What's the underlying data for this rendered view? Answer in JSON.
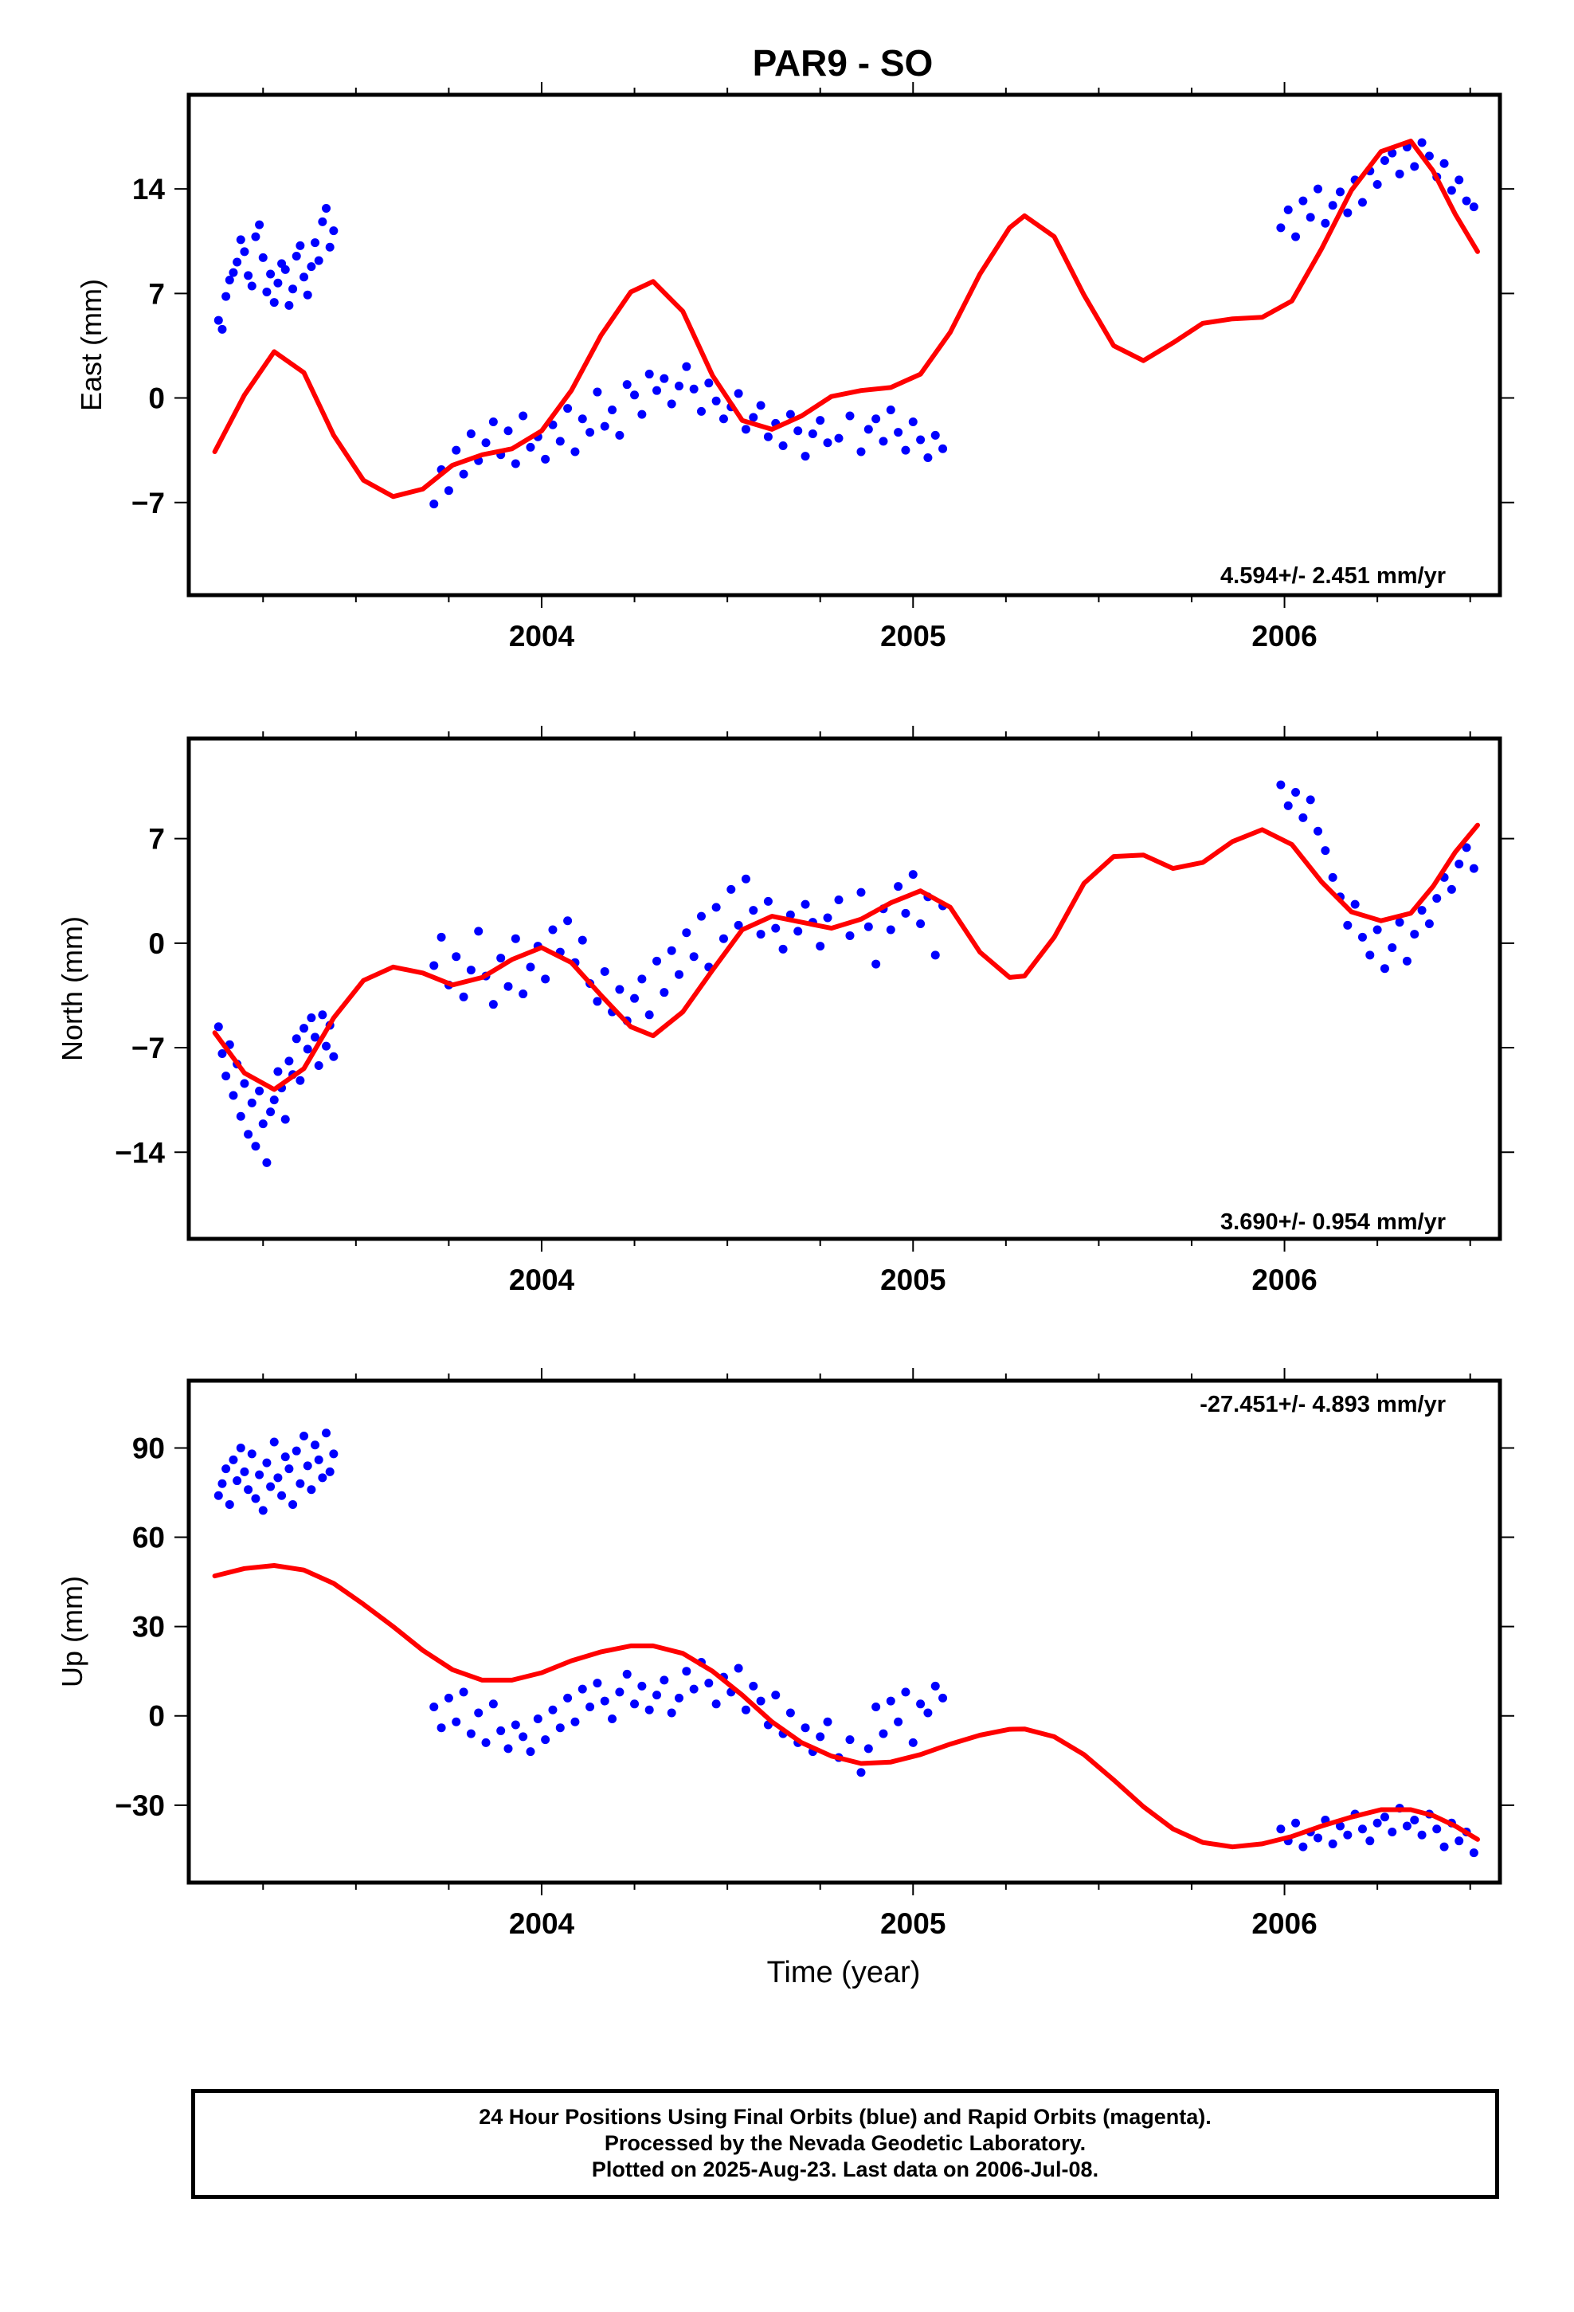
{
  "title": "PAR9 - SO",
  "xlabel": "Time (year)",
  "footer": {
    "line1": "24 Hour Positions Using Final Orbits (blue) and Rapid Orbits (magenta).",
    "line2": "Processed by the Nevada Geodetic Laboratory.",
    "line3": "Plotted on 2025-Aug-23. Last data on 2006-Jul-08."
  },
  "colors": {
    "points": "#0000ff",
    "model": "#ff0000",
    "axes": "#000000"
  },
  "chart_data": [
    {
      "type": "scatter",
      "name": "east",
      "ylabel": "East (mm)",
      "rate_label": "4.594+/- 2.451 mm/yr",
      "rate_position": "bottom-right",
      "xlim": [
        2003.05,
        2006.58
      ],
      "ylim": [
        -13.2,
        20.3
      ],
      "x_ticks": [
        2004,
        2005,
        2006
      ],
      "y_ticks": [
        -7,
        0,
        7,
        14
      ],
      "grid": false,
      "model_line": {
        "x": [
          2003.12,
          2003.2,
          2003.28,
          2003.36,
          2003.44,
          2003.52,
          2003.6,
          2003.68,
          2003.76,
          2003.84,
          2003.92,
          2004.0,
          2004.08,
          2004.16,
          2004.24,
          2004.3,
          2004.38,
          2004.46,
          2004.54,
          2004.62,
          2004.7,
          2004.78,
          2004.86,
          2004.94,
          2005.02,
          2005.1,
          2005.18,
          2005.26,
          2005.3,
          2005.38,
          2005.46,
          2005.54,
          2005.62,
          2005.7,
          2005.78,
          2005.86,
          2005.94,
          2006.02,
          2006.1,
          2006.18,
          2006.26,
          2006.34,
          2006.4,
          2006.46,
          2006.52
        ],
        "y": [
          -3.6,
          0.2,
          3.1,
          1.7,
          -2.5,
          -5.5,
          -6.6,
          -6.1,
          -4.5,
          -3.8,
          -3.4,
          -2.2,
          0.5,
          4.2,
          7.1,
          7.8,
          5.8,
          1.5,
          -1.5,
          -2.1,
          -1.2,
          0.1,
          0.5,
          0.7,
          1.6,
          4.4,
          8.3,
          11.4,
          12.2,
          10.8,
          6.9,
          3.5,
          2.5,
          3.7,
          5.0,
          5.3,
          5.4,
          6.5,
          10.0,
          13.9,
          16.5,
          17.2,
          15.2,
          12.3,
          9.8
        ]
      },
      "scatter_points": {
        "x": [
          2003.13,
          2003.14,
          2003.15,
          2003.16,
          2003.17,
          2003.18,
          2003.19,
          2003.2,
          2003.21,
          2003.22,
          2003.23,
          2003.24,
          2003.25,
          2003.26,
          2003.27,
          2003.28,
          2003.29,
          2003.3,
          2003.31,
          2003.32,
          2003.33,
          2003.34,
          2003.35,
          2003.36,
          2003.37,
          2003.38,
          2003.39,
          2003.4,
          2003.41,
          2003.42,
          2003.43,
          2003.44,
          2003.71,
          2003.73,
          2003.75,
          2003.77,
          2003.79,
          2003.81,
          2003.83,
          2003.85,
          2003.87,
          2003.89,
          2003.91,
          2003.93,
          2003.95,
          2003.97,
          2003.99,
          2004.01,
          2004.03,
          2004.05,
          2004.07,
          2004.09,
          2004.11,
          2004.13,
          2004.15,
          2004.17,
          2004.19,
          2004.21,
          2004.23,
          2004.25,
          2004.27,
          2004.29,
          2004.31,
          2004.33,
          2004.35,
          2004.37,
          2004.39,
          2004.41,
          2004.43,
          2004.45,
          2004.47,
          2004.49,
          2004.51,
          2004.53,
          2004.55,
          2004.57,
          2004.59,
          2004.61,
          2004.63,
          2004.65,
          2004.67,
          2004.69,
          2004.71,
          2004.73,
          2004.75,
          2004.77,
          2004.8,
          2004.83,
          2004.86,
          2004.88,
          2004.9,
          2004.92,
          2004.94,
          2004.96,
          2004.98,
          2005.0,
          2005.02,
          2005.04,
          2005.06,
          2005.08,
          2005.99,
          2006.01,
          2006.03,
          2006.05,
          2006.07,
          2006.09,
          2006.11,
          2006.13,
          2006.15,
          2006.17,
          2006.19,
          2006.21,
          2006.23,
          2006.25,
          2006.27,
          2006.29,
          2006.31,
          2006.33,
          2006.35,
          2006.37,
          2006.39,
          2006.41,
          2006.43,
          2006.45,
          2006.47,
          2006.49,
          2006.51
        ],
        "y": [
          5.2,
          4.6,
          6.8,
          7.9,
          8.4,
          9.1,
          10.6,
          9.8,
          8.2,
          7.5,
          10.8,
          11.6,
          9.4,
          7.1,
          8.3,
          6.4,
          7.7,
          9.0,
          8.6,
          6.2,
          7.3,
          9.5,
          10.2,
          8.1,
          6.9,
          8.8,
          10.4,
          9.2,
          11.8,
          12.7,
          10.1,
          11.2,
          -7.1,
          -4.8,
          -6.2,
          -3.5,
          -5.1,
          -2.4,
          -4.2,
          -3.0,
          -1.6,
          -3.8,
          -2.2,
          -4.4,
          -1.2,
          -3.3,
          -2.6,
          -4.1,
          -1.8,
          -2.9,
          -0.7,
          -3.6,
          -1.4,
          -2.3,
          0.4,
          -1.9,
          -0.8,
          -2.5,
          0.9,
          0.2,
          -1.1,
          1.6,
          0.5,
          1.3,
          -0.4,
          0.8,
          2.1,
          0.6,
          -0.9,
          1.0,
          -0.2,
          -1.4,
          -0.6,
          0.3,
          -2.1,
          -1.3,
          -0.5,
          -2.6,
          -1.7,
          -3.2,
          -1.1,
          -2.2,
          -3.9,
          -2.4,
          -1.5,
          -3.0,
          -2.7,
          -1.2,
          -3.6,
          -2.1,
          -1.4,
          -2.9,
          -0.8,
          -2.3,
          -3.5,
          -1.6,
          -2.8,
          -4.0,
          -2.5,
          -3.4,
          11.4,
          12.6,
          10.8,
          13.2,
          12.1,
          14.0,
          11.7,
          12.9,
          13.8,
          12.4,
          14.6,
          13.1,
          15.2,
          14.3,
          15.9,
          16.4,
          15.0,
          16.8,
          15.5,
          17.1,
          16.2,
          14.8,
          15.7,
          13.9,
          14.6,
          13.2,
          12.8
        ]
      }
    },
    {
      "type": "scatter",
      "name": "north",
      "ylabel": "North (mm)",
      "rate_label": "3.690+/- 0.954 mm/yr",
      "rate_position": "bottom-right",
      "xlim": [
        2003.05,
        2006.58
      ],
      "ylim": [
        -19.8,
        13.7
      ],
      "x_ticks": [
        2004,
        2005,
        2006
      ],
      "y_ticks": [
        -14,
        -7,
        0,
        7
      ],
      "grid": false,
      "model_line": {
        "x": [
          2003.12,
          2003.2,
          2003.28,
          2003.36,
          2003.44,
          2003.52,
          2003.6,
          2003.68,
          2003.76,
          2003.84,
          2003.92,
          2004.0,
          2004.08,
          2004.16,
          2004.24,
          2004.3,
          2004.38,
          2004.46,
          2004.54,
          2004.62,
          2004.7,
          2004.78,
          2004.86,
          2004.94,
          2005.02,
          2005.1,
          2005.18,
          2005.26,
          2005.3,
          2005.38,
          2005.46,
          2005.54,
          2005.62,
          2005.7,
          2005.78,
          2005.86,
          2005.94,
          2006.02,
          2006.1,
          2006.18,
          2006.26,
          2006.34,
          2006.4,
          2006.46,
          2006.52
        ],
        "y": [
          -6.0,
          -8.7,
          -9.8,
          -8.4,
          -5.0,
          -2.5,
          -1.6,
          -2.0,
          -2.8,
          -2.3,
          -1.1,
          -0.3,
          -1.3,
          -3.5,
          -5.6,
          -6.2,
          -4.6,
          -1.8,
          0.9,
          1.8,
          1.4,
          1.0,
          1.6,
          2.7,
          3.5,
          2.4,
          -0.6,
          -2.3,
          -2.2,
          0.4,
          4.0,
          5.8,
          5.9,
          5.0,
          5.4,
          6.8,
          7.6,
          6.6,
          4.1,
          2.1,
          1.5,
          2.0,
          3.8,
          6.1,
          7.9
        ]
      },
      "scatter_points": {
        "x": [
          2003.13,
          2003.14,
          2003.15,
          2003.16,
          2003.17,
          2003.18,
          2003.19,
          2003.2,
          2003.21,
          2003.22,
          2003.23,
          2003.24,
          2003.25,
          2003.26,
          2003.27,
          2003.28,
          2003.29,
          2003.3,
          2003.31,
          2003.32,
          2003.33,
          2003.34,
          2003.35,
          2003.36,
          2003.37,
          2003.38,
          2003.39,
          2003.4,
          2003.41,
          2003.42,
          2003.43,
          2003.44,
          2003.71,
          2003.73,
          2003.75,
          2003.77,
          2003.79,
          2003.81,
          2003.83,
          2003.85,
          2003.87,
          2003.89,
          2003.91,
          2003.93,
          2003.95,
          2003.97,
          2003.99,
          2004.01,
          2004.03,
          2004.05,
          2004.07,
          2004.09,
          2004.11,
          2004.13,
          2004.15,
          2004.17,
          2004.19,
          2004.21,
          2004.23,
          2004.25,
          2004.27,
          2004.29,
          2004.31,
          2004.33,
          2004.35,
          2004.37,
          2004.39,
          2004.41,
          2004.43,
          2004.45,
          2004.47,
          2004.49,
          2004.51,
          2004.53,
          2004.55,
          2004.57,
          2004.59,
          2004.61,
          2004.63,
          2004.65,
          2004.67,
          2004.69,
          2004.71,
          2004.73,
          2004.75,
          2004.77,
          2004.8,
          2004.83,
          2004.86,
          2004.88,
          2004.9,
          2004.92,
          2004.94,
          2004.96,
          2004.98,
          2005.0,
          2005.02,
          2005.04,
          2005.06,
          2005.08,
          2005.99,
          2006.01,
          2006.03,
          2006.05,
          2006.07,
          2006.09,
          2006.11,
          2006.13,
          2006.15,
          2006.17,
          2006.19,
          2006.21,
          2006.23,
          2006.25,
          2006.27,
          2006.29,
          2006.31,
          2006.33,
          2006.35,
          2006.37,
          2006.39,
          2006.41,
          2006.43,
          2006.45,
          2006.47,
          2006.49,
          2006.51
        ],
        "y": [
          -5.6,
          -7.4,
          -8.9,
          -6.8,
          -10.2,
          -8.1,
          -11.6,
          -9.4,
          -12.8,
          -10.7,
          -13.6,
          -9.9,
          -12.1,
          -14.7,
          -11.3,
          -10.5,
          -8.6,
          -9.7,
          -11.8,
          -7.9,
          -8.8,
          -6.4,
          -9.2,
          -5.7,
          -7.1,
          -5.0,
          -6.3,
          -8.2,
          -4.8,
          -6.9,
          -5.5,
          -7.6,
          -1.5,
          0.4,
          -2.8,
          -0.9,
          -3.6,
          -1.8,
          0.8,
          -2.2,
          -4.1,
          -1.0,
          -2.9,
          0.3,
          -3.4,
          -1.6,
          -0.2,
          -2.4,
          0.9,
          -0.6,
          1.5,
          -1.3,
          0.2,
          -2.7,
          -3.9,
          -1.9,
          -4.6,
          -3.1,
          -5.2,
          -3.7,
          -2.4,
          -4.8,
          -1.2,
          -3.3,
          -0.5,
          -2.1,
          0.7,
          -0.9,
          1.8,
          -1.6,
          2.4,
          0.3,
          3.6,
          1.2,
          4.3,
          2.2,
          0.6,
          2.8,
          1.0,
          -0.4,
          1.9,
          0.8,
          2.6,
          1.4,
          -0.2,
          1.7,
          2.9,
          0.5,
          3.4,
          1.1,
          -1.4,
          2.3,
          0.9,
          3.8,
          2.0,
          4.6,
          1.3,
          3.1,
          -0.8,
          2.5,
          10.6,
          9.2,
          10.1,
          8.4,
          9.6,
          7.5,
          6.2,
          4.4,
          3.1,
          1.2,
          2.6,
          0.4,
          -0.8,
          0.9,
          -1.7,
          -0.3,
          1.4,
          -1.2,
          0.6,
          2.2,
          1.3,
          3.0,
          4.4,
          3.6,
          5.3,
          6.4,
          5.0
        ]
      }
    },
    {
      "type": "scatter",
      "name": "up",
      "ylabel": "Up (mm)",
      "rate_label": "-27.451+/- 4.893 mm/yr",
      "rate_position": "top-right",
      "xlim": [
        2003.05,
        2006.58
      ],
      "ylim": [
        -56.0,
        112.6
      ],
      "x_ticks": [
        2004,
        2005,
        2006
      ],
      "y_ticks": [
        -30,
        0,
        30,
        60,
        90
      ],
      "grid": false,
      "model_line": {
        "x": [
          2003.12,
          2003.2,
          2003.28,
          2003.36,
          2003.44,
          2003.52,
          2003.6,
          2003.68,
          2003.76,
          2003.84,
          2003.92,
          2004.0,
          2004.08,
          2004.16,
          2004.24,
          2004.3,
          2004.38,
          2004.46,
          2004.54,
          2004.62,
          2004.7,
          2004.78,
          2004.86,
          2004.94,
          2005.02,
          2005.1,
          2005.18,
          2005.26,
          2005.3,
          2005.38,
          2005.46,
          2005.54,
          2005.62,
          2005.7,
          2005.78,
          2005.86,
          2005.94,
          2006.02,
          2006.1,
          2006.18,
          2006.26,
          2006.34,
          2006.4,
          2006.46,
          2006.52
        ],
        "y": [
          47,
          49.5,
          50.5,
          49,
          44.5,
          37.5,
          30,
          22,
          15.5,
          12,
          12,
          14.5,
          18.5,
          21.5,
          23.5,
          23.5,
          21,
          15,
          7,
          -2,
          -9,
          -13.5,
          -16,
          -15.5,
          -13,
          -9.5,
          -6.5,
          -4.5,
          -4.4,
          -7,
          -13,
          -21.5,
          -30.5,
          -38,
          -42.5,
          -44,
          -43,
          -40.5,
          -37,
          -34,
          -31.5,
          -31.5,
          -33.5,
          -37,
          -41.5
        ]
      },
      "scatter_points": {
        "x": [
          2003.13,
          2003.14,
          2003.15,
          2003.16,
          2003.17,
          2003.18,
          2003.19,
          2003.2,
          2003.21,
          2003.22,
          2003.23,
          2003.24,
          2003.25,
          2003.26,
          2003.27,
          2003.28,
          2003.29,
          2003.3,
          2003.31,
          2003.32,
          2003.33,
          2003.34,
          2003.35,
          2003.36,
          2003.37,
          2003.38,
          2003.39,
          2003.4,
          2003.41,
          2003.42,
          2003.43,
          2003.44,
          2003.71,
          2003.73,
          2003.75,
          2003.77,
          2003.79,
          2003.81,
          2003.83,
          2003.85,
          2003.87,
          2003.89,
          2003.91,
          2003.93,
          2003.95,
          2003.97,
          2003.99,
          2004.01,
          2004.03,
          2004.05,
          2004.07,
          2004.09,
          2004.11,
          2004.13,
          2004.15,
          2004.17,
          2004.19,
          2004.21,
          2004.23,
          2004.25,
          2004.27,
          2004.29,
          2004.31,
          2004.33,
          2004.35,
          2004.37,
          2004.39,
          2004.41,
          2004.43,
          2004.45,
          2004.47,
          2004.49,
          2004.51,
          2004.53,
          2004.55,
          2004.57,
          2004.59,
          2004.61,
          2004.63,
          2004.65,
          2004.67,
          2004.69,
          2004.71,
          2004.73,
          2004.75,
          2004.77,
          2004.8,
          2004.83,
          2004.86,
          2004.88,
          2004.9,
          2004.92,
          2004.94,
          2004.96,
          2004.98,
          2005.0,
          2005.02,
          2005.04,
          2005.06,
          2005.08,
          2005.99,
          2006.01,
          2006.03,
          2006.05,
          2006.07,
          2006.09,
          2006.11,
          2006.13,
          2006.15,
          2006.17,
          2006.19,
          2006.21,
          2006.23,
          2006.25,
          2006.27,
          2006.29,
          2006.31,
          2006.33,
          2006.35,
          2006.37,
          2006.39,
          2006.41,
          2006.43,
          2006.45,
          2006.47,
          2006.49,
          2006.51
        ],
        "y": [
          74,
          78,
          83,
          71,
          86,
          79,
          90,
          82,
          76,
          88,
          73,
          81,
          69,
          85,
          77,
          92,
          80,
          74,
          87,
          83,
          71,
          89,
          78,
          94,
          84,
          76,
          91,
          86,
          80,
          95,
          82,
          88,
          3,
          -4,
          6,
          -2,
          8,
          -6,
          1,
          -9,
          4,
          -5,
          -11,
          -3,
          -7,
          -12,
          -1,
          -8,
          2,
          -4,
          6,
          -2,
          9,
          3,
          11,
          5,
          -1,
          8,
          14,
          4,
          10,
          2,
          7,
          12,
          1,
          6,
          15,
          9,
          18,
          11,
          4,
          13,
          8,
          16,
          2,
          10,
          5,
          -3,
          7,
          -6,
          1,
          -9,
          -4,
          -12,
          -7,
          -2,
          -14,
          -8,
          -19,
          -11,
          3,
          -6,
          5,
          -2,
          8,
          -9,
          4,
          1,
          10,
          6,
          -38,
          -42,
          -36,
          -44,
          -39,
          -41,
          -35,
          -43,
          -37,
          -40,
          -33,
          -38,
          -42,
          -36,
          -34,
          -39,
          -31,
          -37,
          -35,
          -40,
          -33,
          -38,
          -44,
          -36,
          -42,
          -39,
          -46
        ]
      }
    }
  ]
}
